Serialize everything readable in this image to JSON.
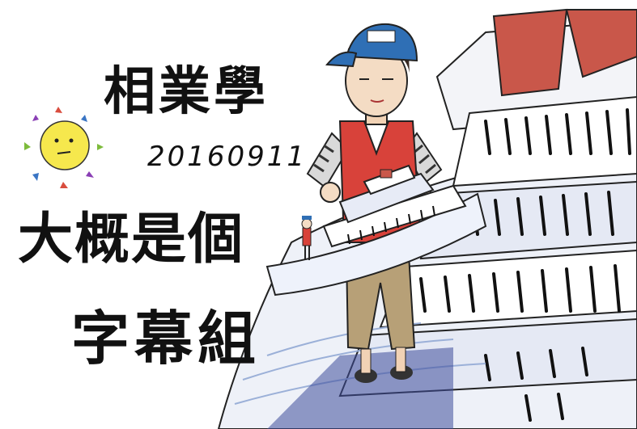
{
  "texts": {
    "line1": "相業學",
    "date": "20160911",
    "line2": "大概是個",
    "line3": "字幕組"
  },
  "icons": {
    "sun": "smiley-sun-icon",
    "character": "boy-with-cap-holding-ship-illustration",
    "ship": "cruise-ship-illustration"
  },
  "colors": {
    "cap": "#2f6fb5",
    "vest": "#d8423a",
    "sun_face": "#f6e84d",
    "ship_red": "#c9574a",
    "pants": "#b7a077"
  }
}
